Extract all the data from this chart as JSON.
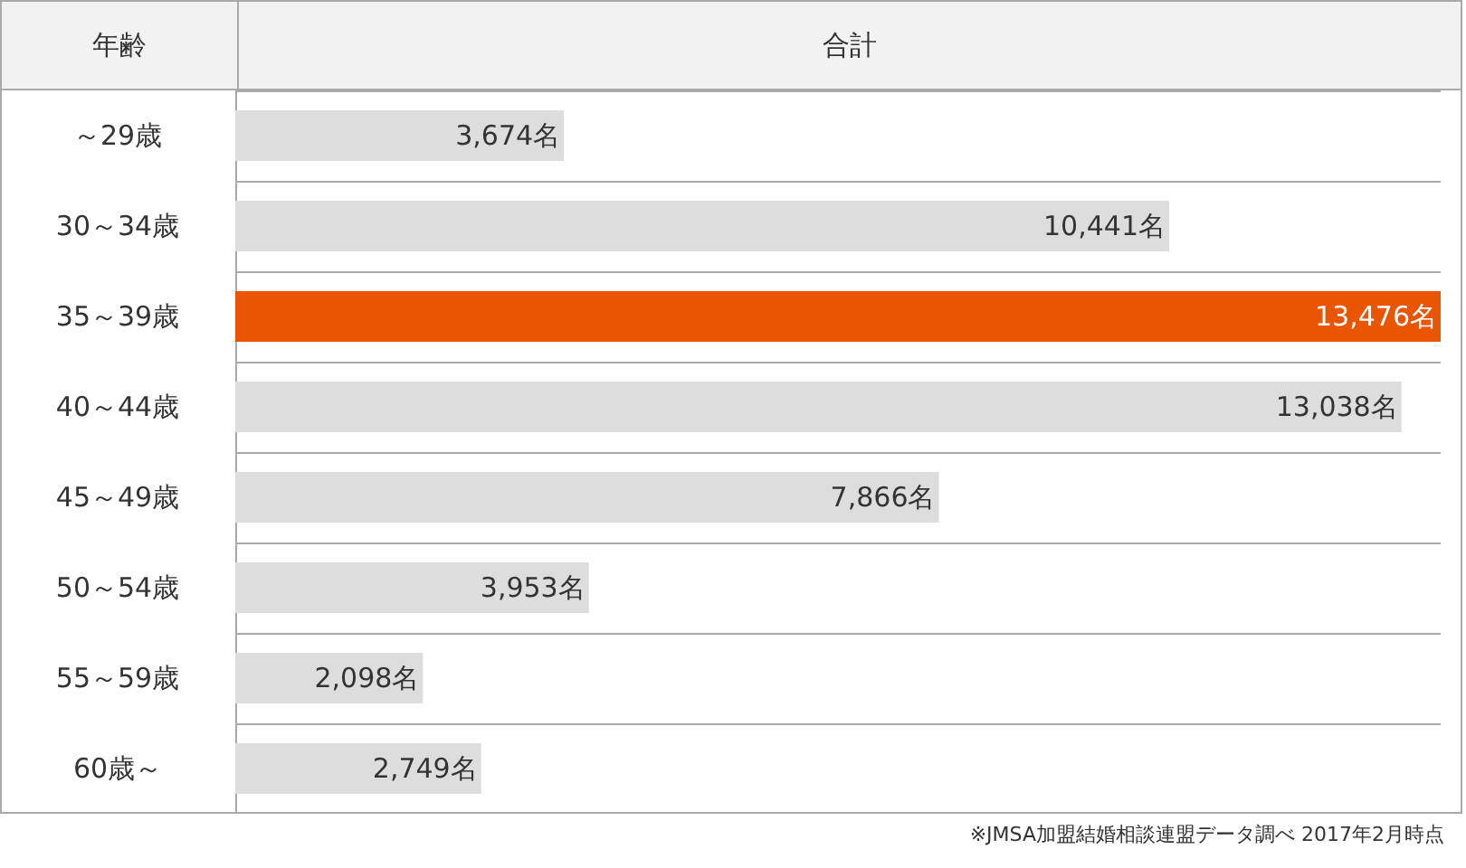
{
  "chart_data": {
    "type": "bar",
    "orientation": "horizontal",
    "ylabel": "年齢",
    "xlabel": "合計",
    "categories": [
      "～29歳",
      "30～34歳",
      "35～39歳",
      "40～44歳",
      "45～49歳",
      "50～54歳",
      "55～59歳",
      "60歳～"
    ],
    "values": [
      3674,
      10441,
      13476,
      13038,
      7866,
      3953,
      2098,
      2749
    ],
    "colors": [
      "#dddddd",
      "#dddddd",
      "#ea5504",
      "#dddddd",
      "#dddddd",
      "#dddddd",
      "#dddddd",
      "#dddddd"
    ],
    "value_labels": [
      "3,674名",
      "10,441名",
      "13,476名",
      "13,038名",
      "7,866名",
      "3,953名",
      "2,098名",
      "2,749名"
    ],
    "grid": "y",
    "annotations": [
      "※JMSA加盟結婚相談連盟データ調べ 2017年2月時点"
    ]
  }
}
